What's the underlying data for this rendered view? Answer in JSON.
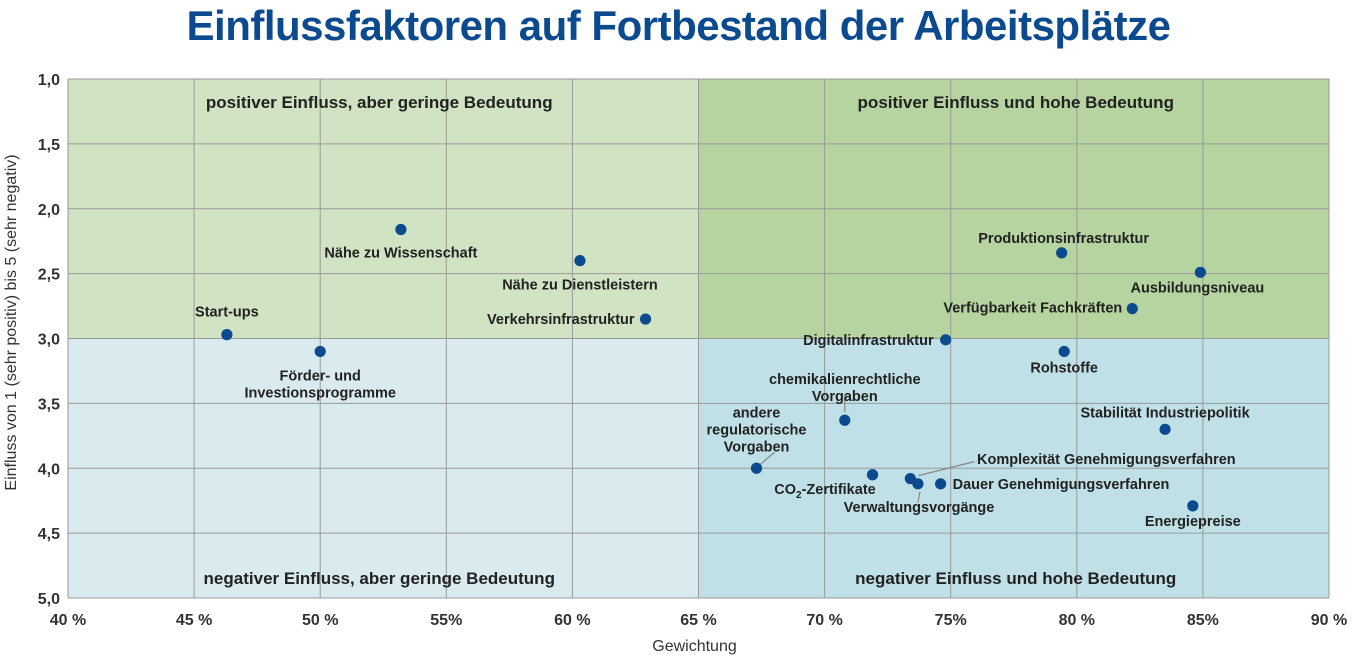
{
  "chart_data": {
    "type": "scatter",
    "title": "Einflussfaktoren auf Fortbestand der Arbeitsplätze",
    "xlabel": "Gewichtung",
    "ylabel": "Einfluss von 1 (sehr positiv) bis 5 (sehr negativ)",
    "xlim": [
      40,
      90
    ],
    "ylim": [
      1,
      5
    ],
    "y_inverted": true,
    "grid": true,
    "x_ticks": [
      {
        "value": 40,
        "label": "40 %"
      },
      {
        "value": 45,
        "label": "45 %"
      },
      {
        "value": 50,
        "label": "50 %"
      },
      {
        "value": 55,
        "label": "55%"
      },
      {
        "value": 60,
        "label": "60 %"
      },
      {
        "value": 65,
        "label": "65 %"
      },
      {
        "value": 70,
        "label": "70 %"
      },
      {
        "value": 75,
        "label": "75%"
      },
      {
        "value": 80,
        "label": "80 %"
      },
      {
        "value": 85,
        "label": "85%"
      },
      {
        "value": 90,
        "label": "90 %"
      }
    ],
    "y_ticks": [
      {
        "value": 1.0,
        "label": "1,0"
      },
      {
        "value": 1.5,
        "label": "1,5"
      },
      {
        "value": 2.0,
        "label": "2,0"
      },
      {
        "value": 2.5,
        "label": "2,5"
      },
      {
        "value": 3.0,
        "label": "3,0"
      },
      {
        "value": 3.5,
        "label": "3,5"
      },
      {
        "value": 4.0,
        "label": "4,0"
      },
      {
        "value": 4.5,
        "label": "4,5"
      },
      {
        "value": 5.0,
        "label": "5,0"
      }
    ],
    "quadrants": [
      {
        "label": "positiver Einfluss, aber geringe Bedeutung",
        "x_range": [
          40,
          65
        ],
        "y_range": [
          1,
          3
        ],
        "color": "#d0e3c2"
      },
      {
        "label": "positiver Einfluss und hohe Bedeutung",
        "x_range": [
          65,
          90
        ],
        "y_range": [
          1,
          3
        ],
        "color": "#b5d4a0"
      },
      {
        "label": "negativer Einfluss, aber geringe Bedeutung",
        "x_range": [
          40,
          65
        ],
        "y_range": [
          3,
          5
        ],
        "color": "#d9ebef"
      },
      {
        "label": "negativer Einfluss und hohe Bedeutung",
        "x_range": [
          65,
          90
        ],
        "y_range": [
          3,
          5
        ],
        "color": "#bfe0e6"
      }
    ],
    "point_color": "#0b4a8f",
    "points": [
      {
        "name": "Nähe zu Wissenschaft",
        "x": 53.2,
        "y": 2.16
      },
      {
        "name": "Nähe zu Dienstleistern",
        "x": 60.3,
        "y": 2.4
      },
      {
        "name": "Start-ups",
        "x": 46.3,
        "y": 2.97
      },
      {
        "name": "Förder- und Investionsprogramme",
        "x": 50.0,
        "y": 3.1
      },
      {
        "name": "Verkehrsinfrastruktur",
        "x": 62.9,
        "y": 2.85
      },
      {
        "name": "Produktionsinfrastruktur",
        "x": 79.4,
        "y": 2.34
      },
      {
        "name": "Ausbildungsniveau",
        "x": 84.9,
        "y": 2.49
      },
      {
        "name": "Verfügbarkeit Fachkräften",
        "x": 82.2,
        "y": 2.77
      },
      {
        "name": "Digitalinfrastruktur",
        "x": 74.8,
        "y": 3.01
      },
      {
        "name": "Rohstoffe",
        "x": 79.5,
        "y": 3.1
      },
      {
        "name": "chemikalienrechtliche Vorgaben",
        "x": 70.8,
        "y": 3.63
      },
      {
        "name": "andere regulatorische Vorgaben",
        "x": 67.3,
        "y": 4.0
      },
      {
        "name": "Stabilität Industriepolitik",
        "x": 83.5,
        "y": 3.7
      },
      {
        "name": "CO₂-Zertifikate",
        "x": 71.9,
        "y": 4.05
      },
      {
        "name": "Komplexität Genehmigungsverfahren",
        "x": 73.4,
        "y": 4.08
      },
      {
        "name": "Verwaltungsvorgänge",
        "x": 73.7,
        "y": 4.12
      },
      {
        "name": "Dauer Genehmigungsverfahren",
        "x": 74.6,
        "y": 4.12
      },
      {
        "name": "Energiepreise",
        "x": 84.6,
        "y": 4.29
      }
    ]
  }
}
